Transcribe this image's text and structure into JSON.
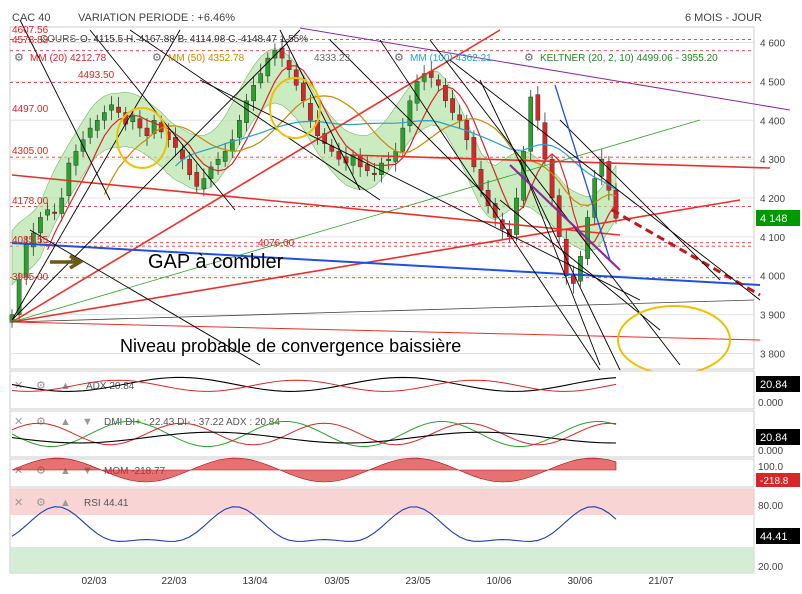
{
  "header": {
    "symbol": "CAC 40",
    "variation": "VARIATION PERIODE : +6.46%",
    "period": "6 MOIS - JOUR",
    "ohlc": "O. 4115.5   H. 4167.88   B. 4114.98   C. 4148.47 1.55%",
    "cours_label": "COURS"
  },
  "indicators": {
    "mm20": "MM (20) 4212.78",
    "mm50": "MM (50) 4352.78",
    "mm100": "MM (100) 4362.21",
    "keltner": "KELTNER (20, 2, 10) 4499.06 - 3955.20",
    "mid_value": "4333.23"
  },
  "colors": {
    "up_candle": "#2ca02c",
    "down_candle": "#d62728",
    "keltner_fill": "#b5e3a6",
    "price_label_bg": "#009900",
    "trend_red": "#e8302a",
    "trend_blue": "#2050e0",
    "trend_black": "#000000",
    "annotation_yellow": "#f0c000"
  },
  "level_labels": [
    "4607.56",
    "4578.88",
    "4493.50",
    "4497.00",
    "4305.00",
    "4178.00",
    "4085.55",
    "4076.00",
    "3995.00"
  ],
  "annotations": {
    "gap": "GAP à combler",
    "convergence": "Niveau probable de convergence baissière"
  },
  "chart_data": {
    "type": "candlestick",
    "x_ticks": [
      "02/03",
      "22/03",
      "13/04",
      "03/05",
      "23/05",
      "10/06",
      "30/06",
      "21/07"
    ],
    "y_ticks": [
      "4 600",
      "4 500",
      "4 400",
      "4 300",
      "4 200",
      "4 100",
      "4 000",
      "3 900",
      "3 800"
    ],
    "ylim": [
      3760,
      4640
    ],
    "last_price": "4 148",
    "closes": [
      3900,
      3990,
      4080,
      4110,
      4150,
      4170,
      4160,
      4200,
      4290,
      4320,
      4350,
      4380,
      4400,
      4420,
      4440,
      4420,
      4390,
      4410,
      4380,
      4360,
      4400,
      4370,
      4350,
      4330,
      4300,
      4260,
      4230,
      4250,
      4280,
      4300,
      4320,
      4350,
      4400,
      4450,
      4490,
      4520,
      4560,
      4580,
      4560,
      4530,
      4490,
      4450,
      4400,
      4360,
      4340,
      4320,
      4300,
      4290,
      4310,
      4280,
      4270,
      4260,
      4290,
      4300,
      4320,
      4380,
      4450,
      4500,
      4520,
      4510,
      4490,
      4450,
      4420,
      4400,
      4350,
      4280,
      4220,
      4180,
      4150,
      4120,
      4100,
      4200,
      4320,
      4460,
      4400,
      4300,
      4200,
      4100,
      4000,
      3980,
      4050,
      4150,
      4250,
      4300,
      4220,
      4148
    ]
  },
  "panels": {
    "adx": {
      "label": "ADX 20.84",
      "value": "20.84",
      "zero": "0.000"
    },
    "dmi": {
      "label": "DMI DI+ : 22.43 DI- : 37.22 ADX : 20.84",
      "value": "20.84",
      "zero": "0.000"
    },
    "mom": {
      "label": "MOM -218.77",
      "value": "-218.8",
      "top": "100.0",
      "bottom": "-200.0"
    },
    "rsi": {
      "label": "RSI 44.41",
      "value": "44.41",
      "t80": "80.00",
      "t20": "20.00"
    }
  }
}
